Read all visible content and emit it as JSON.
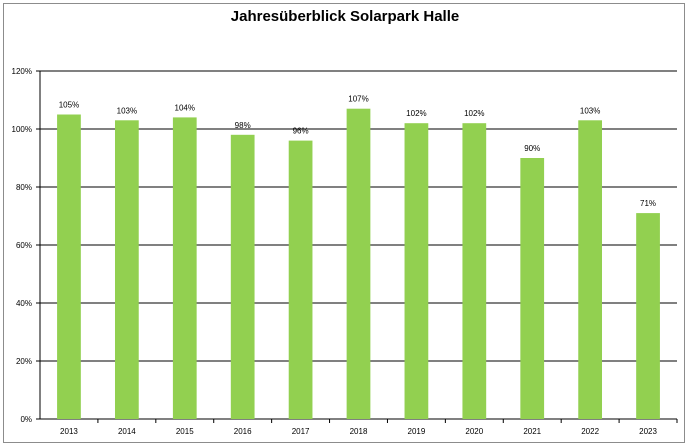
{
  "chart_data": {
    "type": "bar",
    "title": "Jahresüberblick Solarpark Halle",
    "xlabel": "",
    "ylabel": "",
    "categories": [
      "2013",
      "2014",
      "2015",
      "2016",
      "2017",
      "2018",
      "2019",
      "2020",
      "2021",
      "2022",
      "2023"
    ],
    "values": [
      105,
      103,
      104,
      98,
      96,
      107,
      102,
      102,
      90,
      103,
      71
    ],
    "data_labels": [
      "105%",
      "103%",
      "104%",
      "98%",
      "96%",
      "107%",
      "102%",
      "102%",
      "90%",
      "103%",
      "71%"
    ],
    "ylim": [
      0,
      120
    ],
    "yticks": [
      0,
      20,
      40,
      60,
      80,
      100,
      120
    ],
    "ytick_labels": [
      "0%",
      "20%",
      "40%",
      "60%",
      "80%",
      "100%",
      "120%"
    ],
    "grid": true,
    "legend": "none",
    "colors": {
      "bar": "#92d050",
      "grid": "#000000"
    }
  }
}
